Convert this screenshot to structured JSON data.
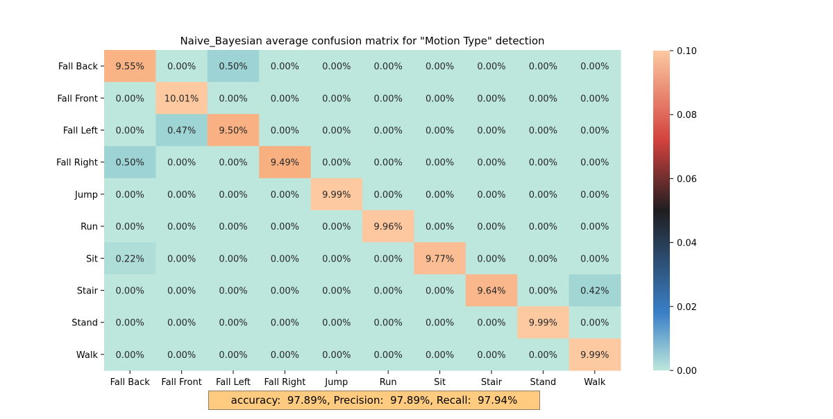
{
  "chart_data": {
    "type": "heatmap",
    "title": "Naive_Bayesian average confusion matrix for \"Motion Type\" detection",
    "row_labels": [
      "Fall Back",
      "Fall Front",
      "Fall Left",
      "Fall Right",
      "Jump",
      "Run",
      "Sit",
      "Stair",
      "Stand",
      "Walk"
    ],
    "col_labels": [
      "Fall Back",
      "Fall Front",
      "Fall Left",
      "Fall Right",
      "Jump",
      "Run",
      "Sit",
      "Stair",
      "Stand",
      "Walk"
    ],
    "values": [
      [
        9.55,
        0.0,
        0.5,
        0.0,
        0.0,
        0.0,
        0.0,
        0.0,
        0.0,
        0.0
      ],
      [
        0.0,
        10.01,
        0.0,
        0.0,
        0.0,
        0.0,
        0.0,
        0.0,
        0.0,
        0.0
      ],
      [
        0.0,
        0.47,
        9.5,
        0.0,
        0.0,
        0.0,
        0.0,
        0.0,
        0.0,
        0.0
      ],
      [
        0.5,
        0.0,
        0.0,
        9.49,
        0.0,
        0.0,
        0.0,
        0.0,
        0.0,
        0.0
      ],
      [
        0.0,
        0.0,
        0.0,
        0.0,
        9.99,
        0.0,
        0.0,
        0.0,
        0.0,
        0.0
      ],
      [
        0.0,
        0.0,
        0.0,
        0.0,
        0.0,
        9.96,
        0.0,
        0.0,
        0.0,
        0.0
      ],
      [
        0.22,
        0.0,
        0.0,
        0.0,
        0.0,
        0.0,
        9.77,
        0.0,
        0.0,
        0.0
      ],
      [
        0.0,
        0.0,
        0.0,
        0.0,
        0.0,
        0.0,
        0.0,
        9.64,
        0.0,
        0.42
      ],
      [
        0.0,
        0.0,
        0.0,
        0.0,
        0.0,
        0.0,
        0.0,
        0.0,
        9.99,
        0.0
      ],
      [
        0.0,
        0.0,
        0.0,
        0.0,
        0.0,
        0.0,
        0.0,
        0.0,
        0.0,
        9.99
      ]
    ],
    "value_unit": "%",
    "colorbar": {
      "range": [
        0.0,
        0.1
      ],
      "ticks": [
        "0.00",
        "0.02",
        "0.04",
        "0.06",
        "0.08",
        "0.10"
      ],
      "colormap": "icefire",
      "colors": {
        "low": "#bde7dc",
        "mid_low": "#3a80c8",
        "mid": "#1f1e20",
        "mid_high": "#d3423e",
        "high": "#fdc9a1"
      }
    },
    "grid": false,
    "summary": "accuracy:  97.89%, Precision:  97.89%, Recall:  97.94%",
    "summary_bg": "#fecb80"
  }
}
